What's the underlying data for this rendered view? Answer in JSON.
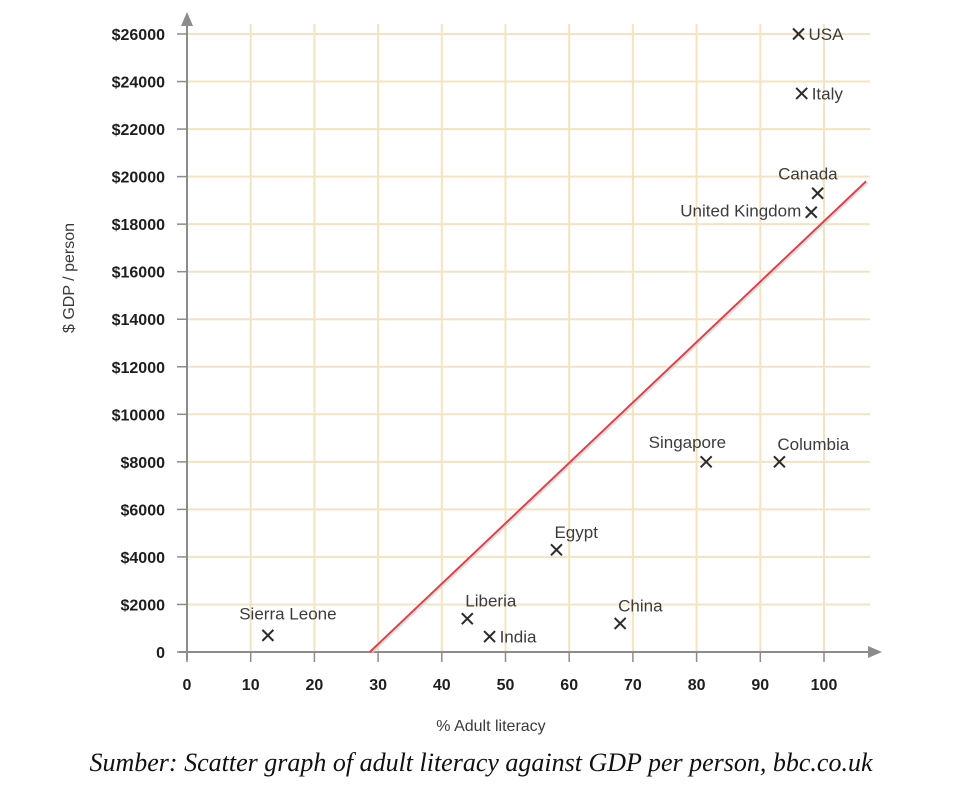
{
  "chart_data": {
    "type": "scatter",
    "title": "",
    "xlabel": "% Adult literacy",
    "ylabel": "$ GDP / person",
    "xlim": [
      0,
      107
    ],
    "ylim": [
      0,
      26000
    ],
    "x_ticks": [
      0,
      10,
      20,
      30,
      40,
      50,
      60,
      70,
      80,
      90,
      100
    ],
    "x_tick_labels": [
      "0",
      "10",
      "20",
      "30",
      "40",
      "50",
      "60",
      "70",
      "80",
      "90",
      "100"
    ],
    "y_ticks": [
      0,
      2000,
      4000,
      6000,
      8000,
      10000,
      12000,
      14000,
      16000,
      18000,
      20000,
      22000,
      24000,
      26000
    ],
    "y_tick_labels": [
      "0",
      "$2000",
      "$4000",
      "$6000",
      "$8000",
      "$10000",
      "$12000",
      "$14000",
      "$16000",
      "$18000",
      "$20000",
      "$22000",
      "$24000",
      "$26000"
    ],
    "grid": true,
    "marker": "x",
    "points": [
      {
        "label": "USA",
        "x": 96,
        "y": 26000,
        "label_pos": "right"
      },
      {
        "label": "Italy",
        "x": 96.5,
        "y": 23500,
        "label_pos": "right"
      },
      {
        "label": "Canada",
        "x": 99,
        "y": 19300,
        "label_pos": "above-left"
      },
      {
        "label": "United Kingdom",
        "x": 98,
        "y": 18500,
        "label_pos": "left"
      },
      {
        "label": "Singapore",
        "x": 81.5,
        "y": 8000,
        "label_pos": "above-left"
      },
      {
        "label": "Columbia",
        "x": 93,
        "y": 8000,
        "label_pos": "above-right"
      },
      {
        "label": "Egypt",
        "x": 58,
        "y": 4300,
        "label_pos": "above-right"
      },
      {
        "label": "Liberia",
        "x": 44,
        "y": 1400,
        "label_pos": "above-right"
      },
      {
        "label": "India",
        "x": 47.5,
        "y": 650,
        "label_pos": "right"
      },
      {
        "label": "China",
        "x": 68,
        "y": 1200,
        "label_pos": "above-right"
      },
      {
        "label": "Sierra Leone",
        "x": 12.7,
        "y": 700,
        "label_pos": "above"
      }
    ],
    "trend_line": {
      "x": [
        28.7,
        106.6
      ],
      "y": [
        0,
        19800
      ],
      "color": "#e0404a"
    },
    "colors": {
      "grid": "#f3e3c3",
      "axis": "#8c8c8c",
      "marker": "#2b2b2b"
    }
  },
  "caption": "Sumber: Scatter graph of adult literacy against GDP per person, bbc.co.uk"
}
